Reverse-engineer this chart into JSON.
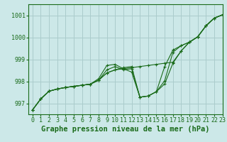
{
  "bg_color": "#cce8e8",
  "grid_color": "#aacccc",
  "line_color": "#1a6b1a",
  "xlabel": "Graphe pression niveau de la mer (hPa)",
  "xlabel_fontsize": 7.5,
  "xlim": [
    -0.5,
    23
  ],
  "ylim": [
    996.5,
    1001.5
  ],
  "yticks": [
    997,
    998,
    999,
    1000,
    1001
  ],
  "xticks": [
    0,
    1,
    2,
    3,
    4,
    5,
    6,
    7,
    8,
    9,
    10,
    11,
    12,
    13,
    14,
    15,
    16,
    17,
    18,
    19,
    20,
    21,
    22,
    23
  ],
  "series": [
    [
      996.7,
      997.2,
      997.55,
      997.65,
      997.72,
      997.77,
      997.82,
      997.87,
      998.05,
      998.38,
      998.52,
      998.57,
      998.62,
      998.67,
      998.72,
      998.77,
      998.82,
      998.87,
      999.38,
      999.78,
      1000.02,
      1000.52,
      1000.87,
      1001.02
    ],
    [
      996.7,
      997.2,
      997.55,
      997.65,
      997.72,
      997.77,
      997.82,
      997.87,
      998.05,
      998.38,
      998.52,
      998.62,
      998.67,
      997.28,
      997.33,
      997.53,
      997.88,
      998.82,
      999.38,
      999.78,
      1000.02,
      1000.52,
      1000.87,
      1001.02
    ],
    [
      996.7,
      997.2,
      997.55,
      997.65,
      997.72,
      997.77,
      997.82,
      997.87,
      998.05,
      998.52,
      998.67,
      998.52,
      998.57,
      997.28,
      997.33,
      997.53,
      998.67,
      999.42,
      999.62,
      999.78,
      1000.02,
      1000.52,
      1000.87,
      1001.02
    ],
    [
      996.7,
      997.2,
      997.55,
      997.65,
      997.72,
      997.77,
      997.82,
      997.87,
      998.12,
      998.72,
      998.77,
      998.57,
      998.42,
      997.28,
      997.33,
      997.53,
      998.02,
      999.32,
      999.62,
      999.78,
      1000.02,
      1000.52,
      1000.87,
      1001.02
    ]
  ],
  "tick_fontsize": 6,
  "ytick_fontsize": 6
}
